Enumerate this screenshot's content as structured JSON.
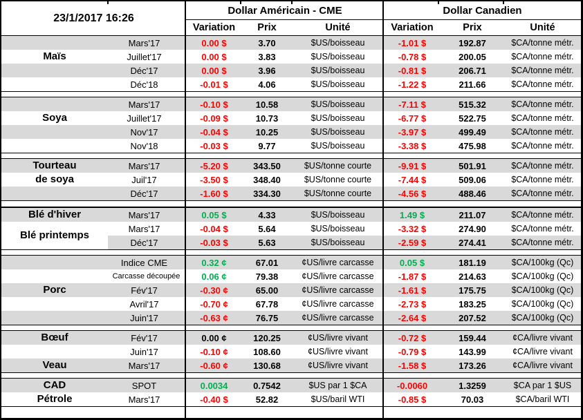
{
  "header": {
    "timestamp": "23/1/2017 16:26",
    "usd_group_title": "Dollar Américain - CME",
    "cad_group_title": "Dollar Canadien",
    "col_variation": "Variation",
    "col_prix": "Prix",
    "col_unite": "Unité"
  },
  "colors": {
    "positive": "#00B050",
    "negative": "#FF0000",
    "neutral": "#000000",
    "band": "#D9D9D9",
    "border": "#000000"
  },
  "sections": [
    {
      "labels": [
        {
          "text": "Maïs",
          "row": 1,
          "span": 1
        }
      ],
      "rows": [
        {
          "contract": "Mars'17",
          "us_var": "0.00 $",
          "us_var_tone": "negative",
          "us_prix": "3.70",
          "us_unit": "$US/boisseau",
          "ca_var": "-1.01 $",
          "ca_var_tone": "negative",
          "ca_prix": "192.87",
          "ca_unit": "$CA/tonne métr."
        },
        {
          "contract": "Juillet'17",
          "us_var": "0.00 $",
          "us_var_tone": "negative",
          "us_prix": "3.83",
          "us_unit": "$US/boisseau",
          "ca_var": "-0.78 $",
          "ca_var_tone": "negative",
          "ca_prix": "200.05",
          "ca_unit": "$CA/tonne métr."
        },
        {
          "contract": "Déc'17",
          "us_var": "0.00 $",
          "us_var_tone": "negative",
          "us_prix": "3.96",
          "us_unit": "$US/boisseau",
          "ca_var": "-0.81 $",
          "ca_var_tone": "negative",
          "ca_prix": "206.71",
          "ca_unit": "$CA/tonne métr."
        },
        {
          "contract": "Déc'18",
          "us_var": "-0.01 $",
          "us_var_tone": "negative",
          "us_prix": "4.06",
          "us_unit": "$US/boisseau",
          "ca_var": "-1.22 $",
          "ca_var_tone": "negative",
          "ca_prix": "211.66",
          "ca_unit": "$CA/tonne métr."
        }
      ]
    },
    {
      "labels": [
        {
          "text": "Soya",
          "row": 1,
          "span": 1
        }
      ],
      "rows": [
        {
          "contract": "Mars'17",
          "us_var": "-0.10 $",
          "us_var_tone": "negative",
          "us_prix": "10.58",
          "us_unit": "$US/boisseau",
          "ca_var": "-7.11 $",
          "ca_var_tone": "negative",
          "ca_prix": "515.32",
          "ca_unit": "$CA/tonne métr."
        },
        {
          "contract": "Juillet'17",
          "us_var": "-0.09 $",
          "us_var_tone": "negative",
          "us_prix": "10.73",
          "us_unit": "$US/boisseau",
          "ca_var": "-6.77 $",
          "ca_var_tone": "negative",
          "ca_prix": "522.75",
          "ca_unit": "$CA/tonne métr."
        },
        {
          "contract": "Nov'17",
          "us_var": "-0.04 $",
          "us_var_tone": "negative",
          "us_prix": "10.25",
          "us_unit": "$US/boisseau",
          "ca_var": "-3.97 $",
          "ca_var_tone": "negative",
          "ca_prix": "499.49",
          "ca_unit": "$CA/tonne métr."
        },
        {
          "contract": "Nov'18",
          "us_var": "-0.03 $",
          "us_var_tone": "negative",
          "us_prix": "9.77",
          "us_unit": "$US/boisseau",
          "ca_var": "-3.38 $",
          "ca_var_tone": "negative",
          "ca_prix": "475.98",
          "ca_unit": "$CA/tonne métr."
        }
      ]
    },
    {
      "labels": [
        {
          "text": "Tourteau",
          "row": 0,
          "span": 1
        },
        {
          "text": "de soya",
          "row": 1,
          "span": 1
        }
      ],
      "rows": [
        {
          "contract": "Mars'17",
          "us_var": "-5.20 $",
          "us_var_tone": "negative",
          "us_prix": "343.50",
          "us_unit": "$US/tonne courte",
          "ca_var": "-9.91 $",
          "ca_var_tone": "negative",
          "ca_prix": "501.91",
          "ca_unit": "$CA/tonne métr."
        },
        {
          "contract": "Juil'17",
          "us_var": "-3.50 $",
          "us_var_tone": "negative",
          "us_prix": "348.40",
          "us_unit": "$US/tonne courte",
          "ca_var": "-7.44 $",
          "ca_var_tone": "negative",
          "ca_prix": "509.06",
          "ca_unit": "$CA/tonne métr."
        },
        {
          "contract": "Déc'17",
          "us_var": "-1.60 $",
          "us_var_tone": "negative",
          "us_prix": "334.30",
          "us_unit": "$US/tonne courte",
          "ca_var": "-4.56 $",
          "ca_var_tone": "negative",
          "ca_prix": "488.46",
          "ca_unit": "$CA/tonne métr."
        }
      ]
    },
    {
      "thick_top": true,
      "labels": [
        {
          "text": "Blé d'hiver",
          "row": 0,
          "span": 1
        },
        {
          "text": "Blé printemps",
          "row": 1,
          "span": 2
        }
      ],
      "rows": [
        {
          "contract": "Mars'17",
          "us_var": "0.05 $",
          "us_var_tone": "positive",
          "us_prix": "4.33",
          "us_unit": "$US/boisseau",
          "ca_var": "1.49 $",
          "ca_var_tone": "positive",
          "ca_prix": "211.07",
          "ca_unit": "$CA/tonne métr."
        },
        {
          "contract": "Mars'17",
          "us_var": "-0.04 $",
          "us_var_tone": "negative",
          "us_prix": "5.64",
          "us_unit": "$US/boisseau",
          "ca_var": "-3.32 $",
          "ca_var_tone": "negative",
          "ca_prix": "274.90",
          "ca_unit": "$CA/tonne métr."
        },
        {
          "contract": "Déc'17",
          "band_from_contract": true,
          "us_var": "-0.03 $",
          "us_var_tone": "negative",
          "us_prix": "5.63",
          "us_unit": "$US/boisseau",
          "ca_var": "-2.59 $",
          "ca_var_tone": "negative",
          "ca_prix": "274.41",
          "ca_unit": "$CA/tonne métr."
        }
      ]
    },
    {
      "labels": [
        {
          "text": "Porc",
          "row": 2,
          "span": 1
        }
      ],
      "rows": [
        {
          "contract": "Indice CME",
          "us_var": "0.32 ¢",
          "us_var_tone": "positive",
          "us_prix": "67.01",
          "us_unit": "¢US/livre carcasse",
          "ca_var": "0.05 $",
          "ca_var_tone": "positive",
          "ca_prix": "181.19",
          "ca_unit": "$CA/100kg (Qc)"
        },
        {
          "contract": "Carcasse découpée",
          "contract_small": true,
          "us_var": "0.06 ¢",
          "us_var_tone": "positive",
          "us_prix": "79.38",
          "us_unit": "¢US/livre carcasse",
          "ca_var": "-1.87 $",
          "ca_var_tone": "negative",
          "ca_prix": "214.63",
          "ca_unit": "$CA/100kg (Qc)"
        },
        {
          "contract": "Fév'17",
          "us_var": "-0.30 ¢",
          "us_var_tone": "negative",
          "us_prix": "65.00",
          "us_unit": "¢US/livre carcasse",
          "ca_var": "-1.61 $",
          "ca_var_tone": "negative",
          "ca_prix": "175.75",
          "ca_unit": "$CA/100kg (Qc)"
        },
        {
          "contract": "Avril'17",
          "us_var": "-0.70 ¢",
          "us_var_tone": "negative",
          "us_prix": "67.78",
          "us_unit": "¢US/livre carcasse",
          "ca_var": "-2.73 $",
          "ca_var_tone": "negative",
          "ca_prix": "183.25",
          "ca_unit": "$CA/100kg (Qc)"
        },
        {
          "contract": "Juin'17",
          "us_var": "-0.63 ¢",
          "us_var_tone": "negative",
          "us_prix": "76.75",
          "us_unit": "¢US/livre carcasse",
          "ca_var": "-2.64 $",
          "ca_var_tone": "negative",
          "ca_prix": "207.52",
          "ca_unit": "$CA/100kg (Qc)"
        }
      ]
    },
    {
      "labels": [
        {
          "text": "Bœuf",
          "row": 0,
          "span": 1
        },
        {
          "text": "Veau",
          "row": 2,
          "span": 1
        }
      ],
      "rows": [
        {
          "contract": "Fév'17",
          "us_var": "0.00 ¢",
          "us_var_tone": "neutral",
          "us_prix": "120.25",
          "us_unit": "¢US/livre vivant",
          "ca_var": "-0.72 $",
          "ca_var_tone": "negative",
          "ca_prix": "159.44",
          "ca_unit": "¢CA/livre vivant"
        },
        {
          "contract": "Juin'17",
          "us_var": "-0.10 ¢",
          "us_var_tone": "negative",
          "us_prix": "108.60",
          "us_unit": "¢US/livre vivant",
          "ca_var": "-0.79 $",
          "ca_var_tone": "negative",
          "ca_prix": "143.99",
          "ca_unit": "¢CA/livre vivant"
        },
        {
          "contract": "Mars'17",
          "us_var": "-0.60 ¢",
          "us_var_tone": "negative",
          "us_prix": "130.68",
          "us_unit": "¢US/livre vivant",
          "ca_var": "-1.58 $",
          "ca_var_tone": "negative",
          "ca_prix": "173.26",
          "ca_unit": "¢CA/livre vivant"
        }
      ]
    },
    {
      "labels": [
        {
          "text": "CAD",
          "row": 0,
          "span": 1
        },
        {
          "text": "Pétrole",
          "row": 1,
          "span": 1
        }
      ],
      "rows": [
        {
          "contract": "SPOT",
          "us_var": "0.0034",
          "us_var_tone": "positive",
          "us_prix": "0.7542",
          "us_unit": "$US par 1 $CA",
          "ca_var": "-0.0060",
          "ca_var_tone": "negative",
          "ca_prix": "1.3259",
          "ca_unit": "$CA par 1 $US"
        },
        {
          "contract": "Mars'17",
          "us_var": "-0.40 $",
          "us_var_tone": "negative",
          "us_prix": "52.82",
          "us_unit": "$US/baril WTI",
          "ca_var": "-0.85 $",
          "ca_var_tone": "negative",
          "ca_prix": "70.03",
          "ca_unit": "$CA/baril WTI"
        }
      ]
    }
  ]
}
